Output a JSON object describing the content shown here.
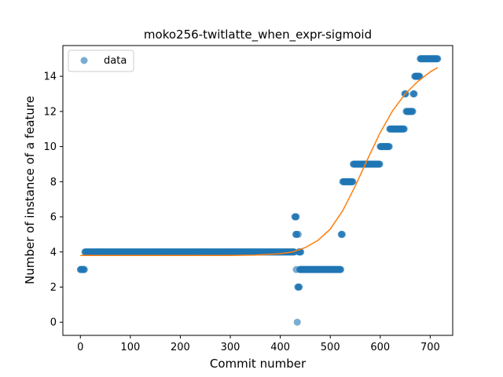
{
  "chart_data": {
    "type": "scatter",
    "title": "moko256-twitlatte_when_expr-sigmoid",
    "xlabel": "Commit number",
    "ylabel": "Number of instance of a feature",
    "xlim": [
      -35,
      745
    ],
    "ylim": [
      -0.75,
      15.75
    ],
    "x_ticks": [
      0,
      100,
      200,
      300,
      400,
      500,
      600,
      700
    ],
    "y_ticks": [
      0,
      2,
      4,
      6,
      8,
      10,
      12,
      14
    ],
    "grid": false,
    "legend_position": "top-left",
    "colors": {
      "points": "#1f77b4",
      "curve": "#ff7f0e"
    },
    "series": [
      {
        "name": "data",
        "kind": "points",
        "runs": [
          {
            "x_start": 0,
            "x_end": 8,
            "y": 3
          },
          {
            "x_start": 9,
            "x_end": 428,
            "y": 4
          },
          {
            "x_start": 429,
            "x_end": 432,
            "y": 6
          },
          {
            "x_start": 431,
            "x_end": 433,
            "y": 5
          },
          {
            "x_start": 432,
            "x_end": 432,
            "y": 3
          },
          {
            "x_start": 434,
            "x_end": 434,
            "y": 0
          },
          {
            "x_start": 435,
            "x_end": 438,
            "y": 2
          },
          {
            "x_start": 436,
            "x_end": 436,
            "y": 5
          },
          {
            "x_start": 437,
            "x_end": 441,
            "y": 4
          },
          {
            "x_start": 439,
            "x_end": 521,
            "y": 3
          },
          {
            "x_start": 522,
            "x_end": 524,
            "y": 5
          },
          {
            "x_start": 525,
            "x_end": 545,
            "y": 8
          },
          {
            "x_start": 546,
            "x_end": 599,
            "y": 9
          },
          {
            "x_start": 600,
            "x_end": 618,
            "y": 10
          },
          {
            "x_start": 619,
            "x_end": 648,
            "y": 11
          },
          {
            "x_start": 649,
            "x_end": 651,
            "y": 13
          },
          {
            "x_start": 652,
            "x_end": 665,
            "y": 12
          },
          {
            "x_start": 666,
            "x_end": 668,
            "y": 13
          },
          {
            "x_start": 669,
            "x_end": 679,
            "y": 14
          },
          {
            "x_start": 680,
            "x_end": 715,
            "y": 15
          }
        ]
      },
      {
        "name": "",
        "kind": "fit-curve",
        "x": [
          0,
          50,
          100,
          150,
          200,
          250,
          300,
          350,
          400,
          425,
          450,
          475,
          500,
          525,
          550,
          575,
          600,
          625,
          650,
          675,
          700,
          715
        ],
        "y": [
          3.8,
          3.8,
          3.8,
          3.8,
          3.8,
          3.8,
          3.8,
          3.82,
          3.9,
          4.0,
          4.25,
          4.65,
          5.3,
          6.35,
          7.75,
          9.3,
          10.8,
          12.05,
          13.0,
          13.7,
          14.25,
          14.5
        ]
      }
    ],
    "legend": [
      {
        "label": "data"
      }
    ]
  }
}
